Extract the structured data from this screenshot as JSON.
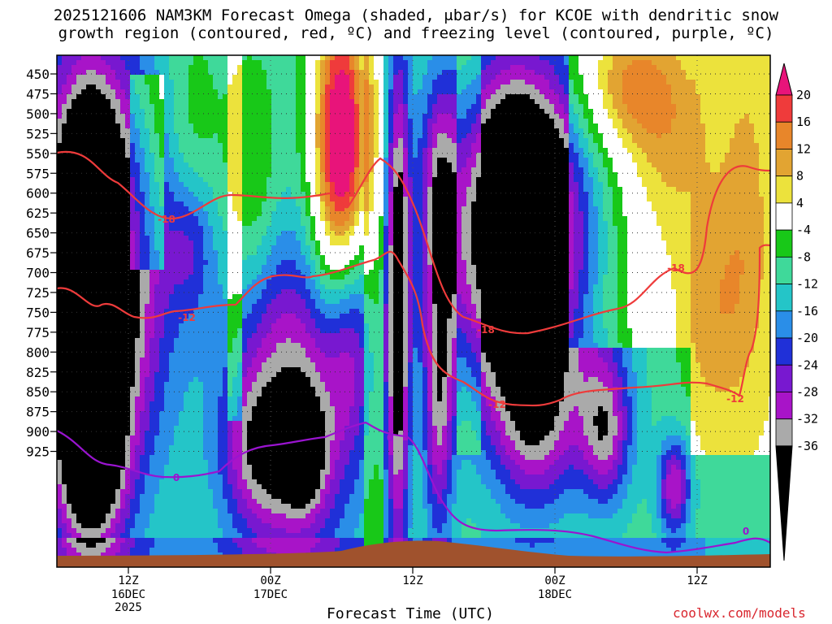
{
  "title_line1": "2025121606 NAM3KM Forecast Omega (shaded, μbar/s) for KCOE with dendritic snow",
  "title_line2": "growth region (contoured, red, ºC) and freezing level (contoured, purple, ºC)",
  "x_axis_title": "Forecast Time (UTC)",
  "credit": "coolwx.com/models",
  "chart_data": {
    "type": "heatmap",
    "title": "2025121606 NAM3KM Forecast Omega (shaded, μbar/s) for KCOE with dendritic snow growth region (contoured, red, ºC) and freezing level (contoured, purple, ºC)",
    "xlabel": "Forecast Time (UTC)",
    "ylabel": "",
    "y_reversed": true,
    "y_ticks": [
      "450",
      "475",
      "500",
      "525",
      "550",
      "575",
      "600",
      "625",
      "650",
      "675",
      "700",
      "725",
      "750",
      "775",
      "800",
      "825",
      "850",
      "875",
      "900",
      "925"
    ],
    "x_ticks": [
      {
        "label": "12Z",
        "sub": "16DEC",
        "sub2": "2025"
      },
      {
        "label": "00Z",
        "sub": "17DEC",
        "sub2": ""
      },
      {
        "label": "12Z",
        "sub": "",
        "sub2": ""
      },
      {
        "label": "00Z",
        "sub": "18DEC",
        "sub2": ""
      },
      {
        "label": "12Z",
        "sub": "",
        "sub2": ""
      }
    ],
    "grid": true,
    "colorbar": {
      "labels": [
        "20",
        "16",
        "12",
        "8",
        "4",
        "-4",
        "-8",
        "-12",
        "-16",
        "-20",
        "-24",
        "-28",
        "-32",
        "-36"
      ],
      "colors": [
        "#e8147a",
        "#ef3b3b",
        "#e8862a",
        "#e2a432",
        "#ece23c",
        "#ffffff",
        "#18c818",
        "#3fd99a",
        "#24c5c8",
        "#2a8ee8",
        "#2030d8",
        "#7818d0",
        "#a814c8",
        "#aaaaaa",
        "#000000"
      ]
    },
    "contour_labels": {
      "dgz": [
        "-18",
        "-12",
        "-12",
        "-18",
        "-18",
        "-12",
        "-12"
      ],
      "freezing": [
        "0",
        "0",
        "0"
      ]
    }
  },
  "colors": {
    "dgz_contour": "#ee3b3b",
    "freezing_contour": "#9a14d0",
    "terrain": "#a0522d",
    "credit": "#d9262e"
  }
}
